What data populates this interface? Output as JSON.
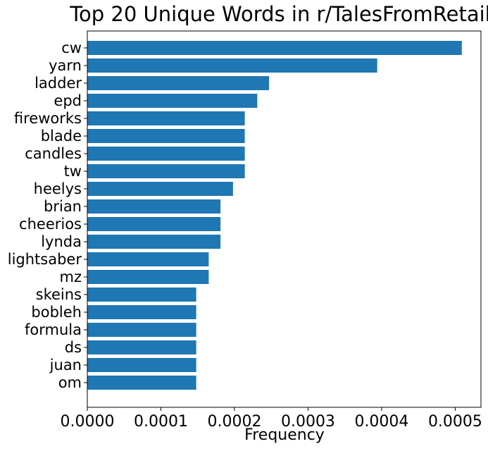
{
  "chart_data": {
    "type": "bar",
    "orientation": "horizontal",
    "title": "Top 20 Unique Words in r/TalesFromRetail",
    "xlabel": "Frequency",
    "ylabel": "",
    "categories": [
      "cw",
      "yarn",
      "ladder",
      "epd",
      "fireworks",
      "blade",
      "candles",
      "tw",
      "heelys",
      "brian",
      "cheerios",
      "lynda",
      "lightsaber",
      "mz",
      "skeins",
      "bobleh",
      "formula",
      "ds",
      "juan",
      "om"
    ],
    "values": [
      0.000509,
      0.000394,
      0.000247,
      0.000231,
      0.000214,
      0.000214,
      0.000214,
      0.000214,
      0.000198,
      0.000181,
      0.000181,
      0.000181,
      0.000165,
      0.000165,
      0.000148,
      0.000148,
      0.000148,
      0.000148,
      0.000148,
      0.000148
    ],
    "xlim": [
      0,
      0.000535
    ],
    "xticks": [
      "0.0000",
      "0.0001",
      "0.0002",
      "0.0003",
      "0.0004",
      "0.0005"
    ],
    "xtick_values": [
      0,
      0.0001,
      0.0002,
      0.0003,
      0.0004,
      0.0005
    ],
    "bar_color": "#1f77b4",
    "grid": false,
    "legend": "none"
  }
}
